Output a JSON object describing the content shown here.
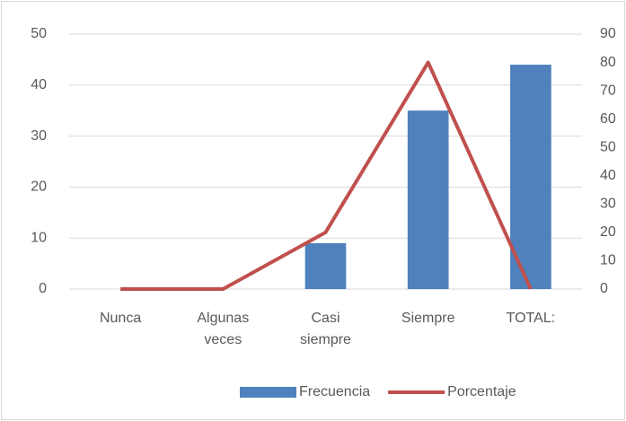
{
  "chart_data": {
    "type": "bar",
    "categories": [
      "Nunca",
      "Algunas veces",
      "Casi siempre",
      "Siempre",
      "TOTAL:"
    ],
    "series": [
      {
        "name": "Frecuencia",
        "type": "bar",
        "color": "#4f81bd",
        "values": [
          0,
          0,
          9,
          35,
          44
        ]
      },
      {
        "name": "Porcentaje",
        "type": "line",
        "axis": "y2",
        "color": "#c0504d",
        "values": [
          0,
          0,
          20,
          80,
          0
        ]
      }
    ],
    "ylim": [
      0,
      50
    ],
    "yticks": [
      0,
      10,
      20,
      30,
      40,
      50
    ],
    "y2lim": [
      0,
      90
    ],
    "y2ticks": [
      0,
      10,
      20,
      30,
      40,
      50,
      60,
      70,
      80,
      90
    ],
    "grid": true,
    "legend": "bottom"
  }
}
